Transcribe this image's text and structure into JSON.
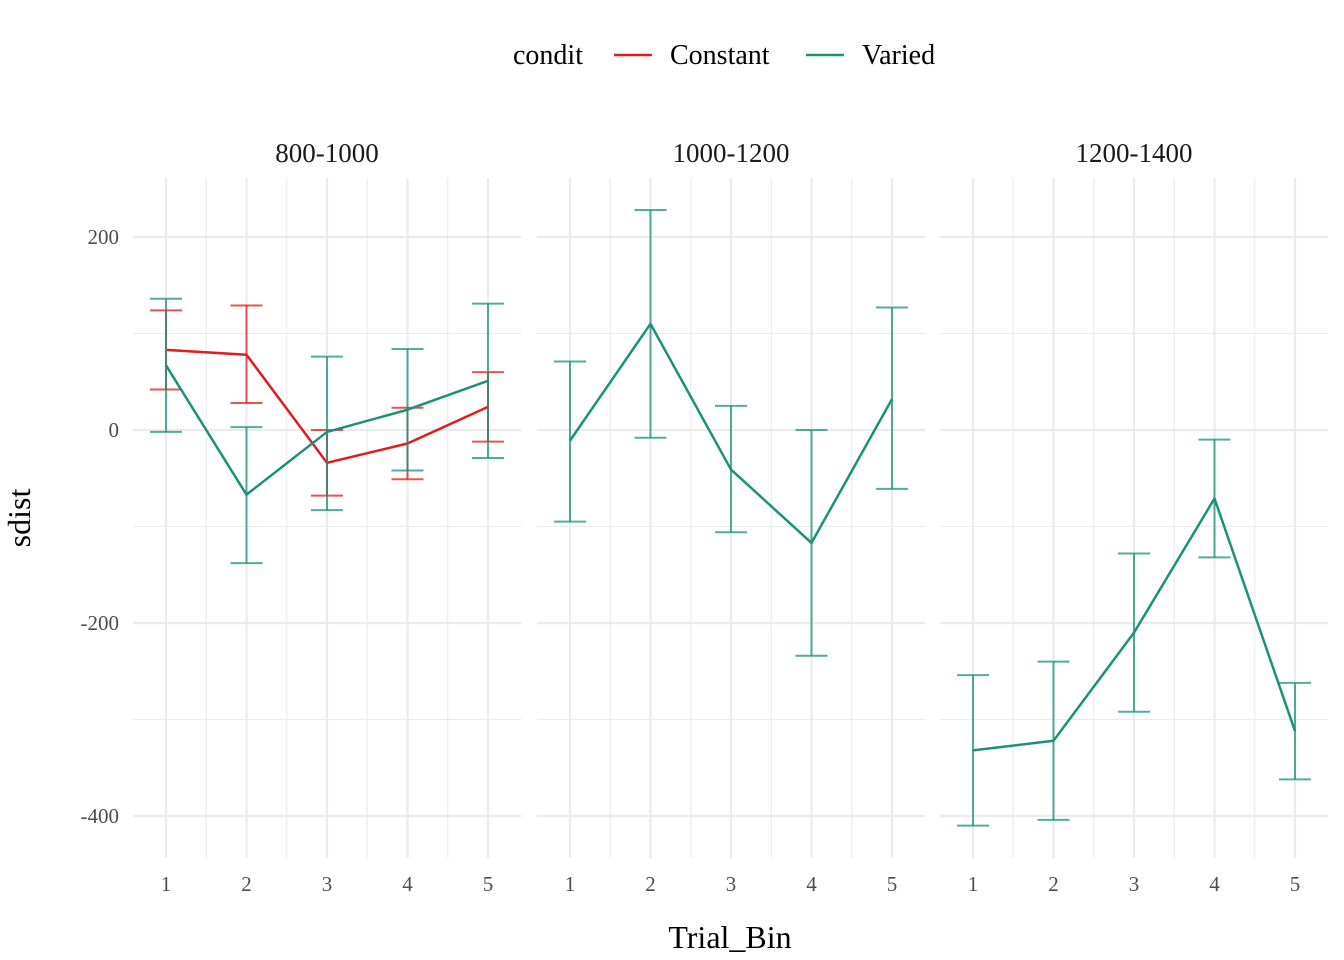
{
  "chart_data": {
    "type": "line",
    "xlabel": "Trial_Bin",
    "ylabel": "sdist",
    "x": [
      1,
      2,
      3,
      4,
      5
    ],
    "x_ticks": [
      "1",
      "2",
      "3",
      "4",
      "5"
    ],
    "y_ticks": [
      200,
      0,
      -200,
      -400
    ],
    "y_tick_labels": [
      "200",
      "0",
      "-200",
      "-400"
    ],
    "ylim": [
      -460,
      260
    ],
    "grid": true,
    "legend": {
      "title": "condit",
      "position": "top",
      "entries": [
        {
          "name": "Constant",
          "color": "#e31a1c"
        },
        {
          "name": "Varied",
          "color": "#1b9179"
        }
      ]
    },
    "facets": [
      {
        "label": "800-1000",
        "series": [
          {
            "name": "Constant",
            "color": "#e31a1c",
            "values": [
              83,
              78,
              -34,
              -14,
              24
            ],
            "lower": [
              42,
              28,
              -68,
              -51,
              -12
            ],
            "upper": [
              124,
              129,
              0,
              23,
              60
            ]
          },
          {
            "name": "Varied",
            "color": "#1b9179",
            "values": [
              67,
              -67,
              -2,
              21,
              51
            ],
            "lower": [
              -2,
              -138,
              -83,
              -42,
              -29
            ],
            "upper": [
              136,
              3,
              76,
              84,
              131
            ]
          }
        ]
      },
      {
        "label": "1000-1200",
        "series": [
          {
            "name": "Varied",
            "color": "#1b9179",
            "values": [
              -11,
              110,
              -41,
              -117,
              32
            ],
            "lower": [
              -95,
              -8,
              -106,
              -234,
              -61
            ],
            "upper": [
              71,
              228,
              25,
              0,
              127
            ]
          }
        ]
      },
      {
        "label": "1200-1400",
        "series": [
          {
            "name": "Varied",
            "color": "#1b9179",
            "values": [
              -332,
              -322,
              -210,
              -71,
              -312
            ],
            "lower": [
              -410,
              -404,
              -292,
              -132,
              -362
            ],
            "upper": [
              -254,
              -240,
              -128,
              -10,
              -262
            ]
          }
        ]
      }
    ]
  }
}
